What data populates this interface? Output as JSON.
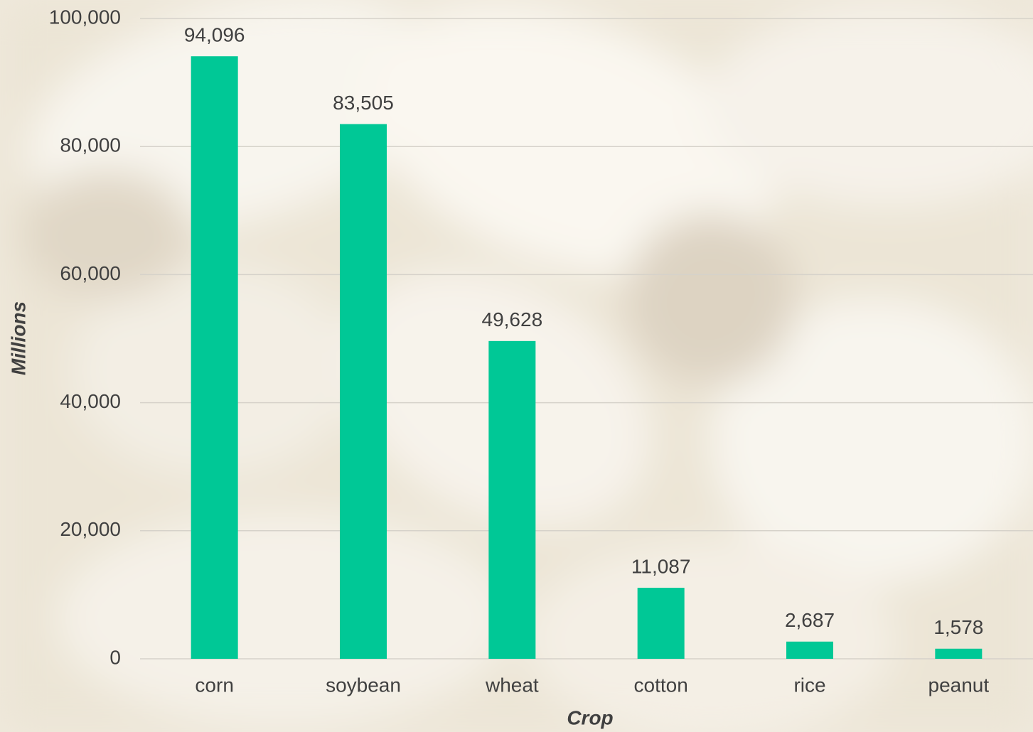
{
  "chart_data": {
    "type": "bar",
    "categories": [
      "corn",
      "soybean",
      "wheat",
      "cotton",
      "rice",
      "peanut"
    ],
    "values": [
      94096,
      83505,
      49628,
      11087,
      2687,
      1578
    ],
    "value_labels": [
      "94,096",
      "83,505",
      "49,628",
      "11,087",
      "2,687",
      "1,578"
    ],
    "color": "#00c896",
    "xlabel": "Crop",
    "ylabel": "Millions",
    "ylim": [
      0,
      100000
    ],
    "yticks": [
      0,
      {
        "value": 20000,
        "label": "20,000"
      },
      {
        "value": 40000,
        "label": "40,000"
      },
      {
        "value": 60000,
        "label": "60,000"
      },
      {
        "value": 80000,
        "label": "80,000"
      },
      {
        "value": 100000,
        "label": "100,000"
      }
    ],
    "grid": true
  }
}
